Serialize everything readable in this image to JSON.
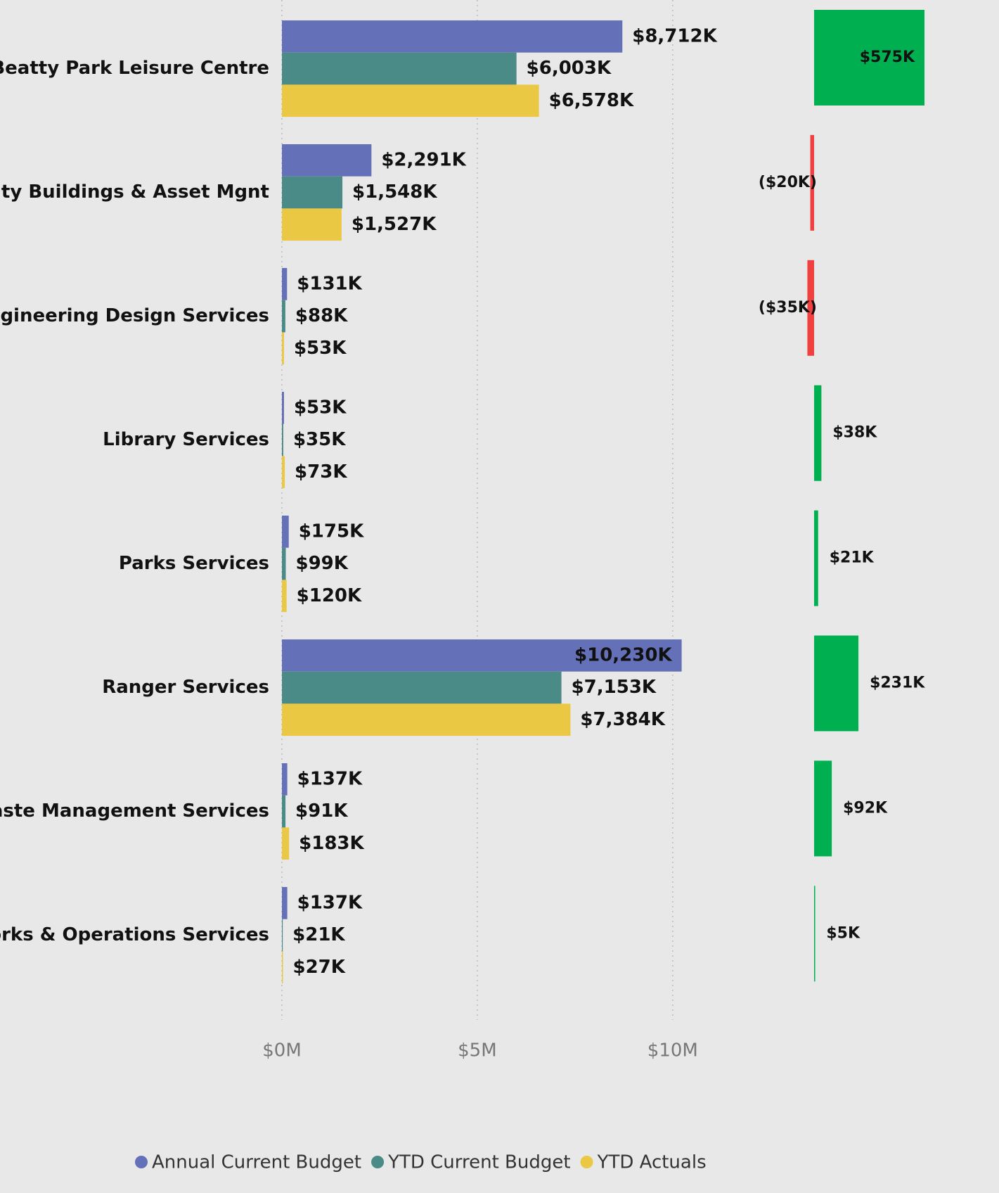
{
  "chart_data": [
    {
      "type": "hbar",
      "categories": [
        "Beatty Park Leisure Centre",
        "City Buildings & Asset Mgnt",
        "Engineering Design Services",
        "Library Services",
        "Parks Services",
        "Ranger Services",
        "Waste Management Services",
        "Works & Operations Services"
      ],
      "series": [
        {
          "name": "Annual Current Budget",
          "color": "#6470b8",
          "values": [
            8.712,
            2.291,
            0.131,
            0.053,
            0.175,
            10.23,
            0.137,
            0.137
          ],
          "value_labels": [
            "$8,712K",
            "$2,291K",
            "$131K",
            "$53K",
            "$175K",
            "$10,230K",
            "$137K",
            "$137K"
          ]
        },
        {
          "name": "YTD Current Budget",
          "color": "#4a8a87",
          "values": [
            6.003,
            1.548,
            0.088,
            0.035,
            0.099,
            7.153,
            0.091,
            0.021
          ],
          "value_labels": [
            "$6,003K",
            "$1,548K",
            "$88K",
            "$35K",
            "$99K",
            "$7,153K",
            "$91K",
            "$21K"
          ]
        },
        {
          "name": "YTD Actuals",
          "color": "#ebc844",
          "values": [
            6.578,
            1.527,
            0.053,
            0.073,
            0.12,
            7.384,
            0.183,
            0.027
          ],
          "value_labels": [
            "$6,578K",
            "$1,527K",
            "$53K",
            "$73K",
            "$120K",
            "$7,384K",
            "$183K",
            "$27K"
          ]
        }
      ],
      "xlim": [
        0,
        12
      ],
      "xticks": [
        {
          "value": 0,
          "label": "$0M"
        },
        {
          "value": 5,
          "label": "$5M"
        },
        {
          "value": 10,
          "label": "$10M"
        }
      ],
      "grid": true,
      "legend": "bottom"
    },
    {
      "type": "variance",
      "values": [
        575,
        -20,
        -35,
        38,
        21,
        231,
        92,
        5
      ],
      "value_labels": [
        "$575K",
        "($20K)",
        "($35K)",
        "$38K",
        "$21K",
        "$231K",
        "$92K",
        "$5K"
      ],
      "positive_color": "#00b050",
      "negative_color": "#f04040"
    }
  ]
}
